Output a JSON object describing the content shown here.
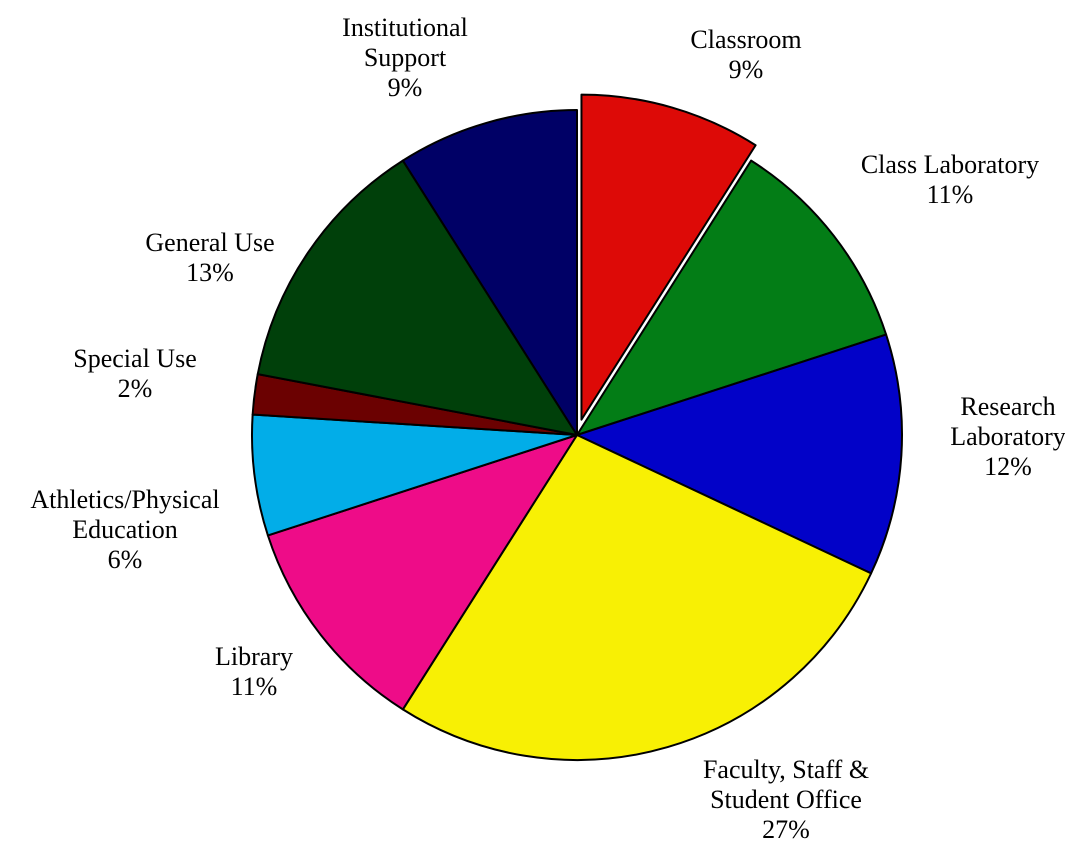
{
  "chart_data": {
    "type": "pie",
    "categories": [
      "Classroom",
      "Class Laboratory",
      "Research Laboratory",
      "Faculty, Staff & Student Office",
      "Library",
      "Athletics/Physical Education",
      "Special Use",
      "General Use",
      "Institutional Support"
    ],
    "values": [
      9,
      11,
      12,
      27,
      11,
      6,
      2,
      13,
      9
    ],
    "value_labels": [
      "9%",
      "11%",
      "12%",
      "27%",
      "11%",
      "6%",
      "2%",
      "13%",
      "9%"
    ],
    "colors": [
      "#dd0a07",
      "#037d16",
      "#0202c8",
      "#f8f004",
      "#ee0c88",
      "#02ade8",
      "#6b0101",
      "#00400a",
      "#000066"
    ],
    "exploded": [
      "Classroom"
    ]
  }
}
